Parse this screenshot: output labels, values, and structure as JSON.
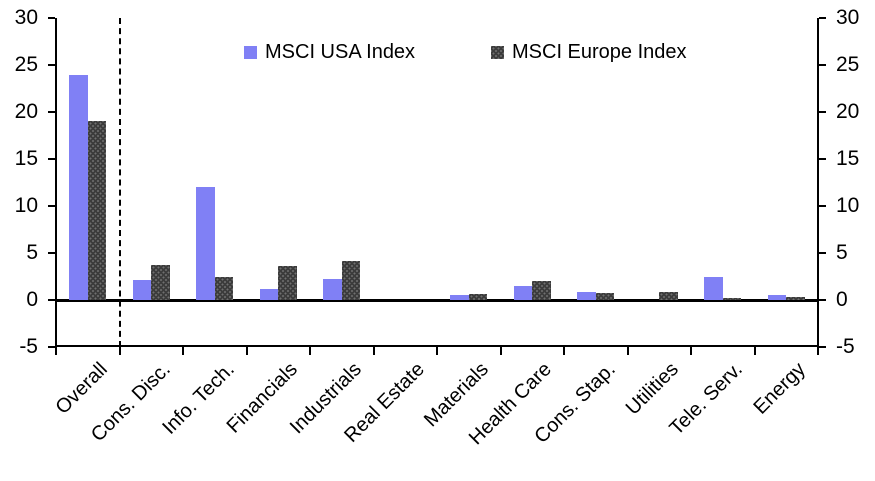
{
  "chart_data": {
    "type": "bar",
    "title": "",
    "categories": [
      "Overall",
      "Cons. Disc.",
      "Info. Tech.",
      "Financials",
      "Industrials",
      "Real Estate",
      "Materials",
      "Health Care",
      "Cons. Stap.",
      "Utilities",
      "Tele. Serv.",
      "Energy"
    ],
    "series": [
      {
        "name": "MSCI USA Index",
        "color": "#8080f5",
        "fill": "solid",
        "values": [
          23.9,
          2.1,
          12.0,
          1.2,
          2.2,
          0,
          0.5,
          1.5,
          0.9,
          0,
          2.5,
          0.5
        ]
      },
      {
        "name": "MSCI Europe Index",
        "color": "#3c3c3c",
        "fill": "speckled",
        "values": [
          19.0,
          3.7,
          2.5,
          3.6,
          4.2,
          0,
          0.6,
          2.0,
          0.7,
          0.8,
          0.2,
          0.3
        ]
      }
    ],
    "y_axis": {
      "min": -5,
      "max": 30,
      "ticks": [
        30,
        25,
        20,
        15,
        10,
        5,
        0,
        -5
      ],
      "sides": "both"
    },
    "grid": false,
    "legend_position": "top-center",
    "separator": {
      "type": "vertical-dashed-line",
      "after_category": "Overall"
    },
    "axis_color": "#000000",
    "background_color": "#ffffff"
  }
}
